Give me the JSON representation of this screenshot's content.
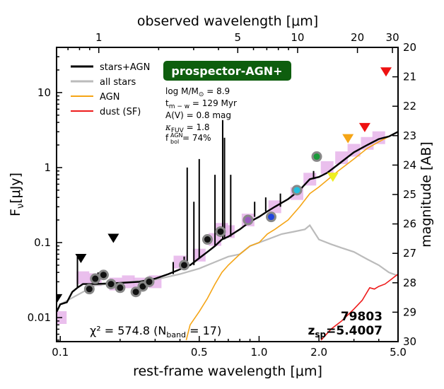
{
  "chart_data": {
    "type": "line",
    "xlabel": "rest-frame wavelength [μm]",
    "xlabel_top": "observed wavelength [μm]",
    "ylabel": "F",
    "ylabel_sub": "ν",
    "ylabel_unit": "[μJy]",
    "ylabel_right": "magnitude [AB]",
    "xscale": "log",
    "yscale": "log",
    "xlim": [
      0.0958,
      5.0
    ],
    "ylim": [
      0.00478,
      40.0
    ],
    "mag_lim": [
      30,
      20
    ],
    "redshift": 5.4007,
    "xticks_bottom": [
      {
        "v": 0.1,
        "label": "0.1"
      },
      {
        "v": 0.5,
        "label": "0.5"
      },
      {
        "v": 1.0,
        "label": "1.0"
      },
      {
        "v": 2.0,
        "label": "2.0"
      },
      {
        "v": 5.0,
        "label": "5.0"
      }
    ],
    "xticks_top": [
      {
        "v": 1,
        "label": "1"
      },
      {
        "v": 5,
        "label": "5"
      },
      {
        "v": 10,
        "label": "10"
      },
      {
        "v": 20,
        "label": "20"
      },
      {
        "v": 30,
        "label": "30"
      }
    ],
    "yticks_left": [
      {
        "v": 0.01,
        "label": "0.01"
      },
      {
        "v": 0.1,
        "label": "0.1"
      },
      {
        "v": 1,
        "label": "1"
      },
      {
        "v": 10,
        "label": "10"
      }
    ],
    "yticks_right": [
      "20",
      "21",
      "22",
      "23",
      "24",
      "25",
      "26",
      "27",
      "28",
      "29",
      "30"
    ],
    "legend": [
      {
        "name": "stars+AGN",
        "color": "#000000"
      },
      {
        "name": "all stars",
        "color": "#bbbbbb"
      },
      {
        "name": "AGN",
        "color": "#f5a516"
      },
      {
        "name": "dust (SF)",
        "color": "#ee1c1c"
      }
    ],
    "series": [
      {
        "name": "stars+AGN",
        "color": "#000000",
        "points": [
          [
            0.096,
            0.012
          ],
          [
            0.1,
            0.015
          ],
          [
            0.108,
            0.016
          ],
          [
            0.115,
            0.022
          ],
          [
            0.122,
            0.025
          ],
          [
            0.13,
            0.028
          ],
          [
            0.15,
            0.028
          ],
          [
            0.2,
            0.029
          ],
          [
            0.25,
            0.03
          ],
          [
            0.3,
            0.033
          ],
          [
            0.35,
            0.038
          ],
          [
            0.4,
            0.044
          ],
          [
            0.45,
            0.05
          ],
          [
            0.5,
            0.062
          ],
          [
            0.55,
            0.075
          ],
          [
            0.6,
            0.09
          ],
          [
            0.65,
            0.11
          ],
          [
            0.7,
            0.12
          ],
          [
            0.8,
            0.15
          ],
          [
            0.9,
            0.19
          ],
          [
            1.0,
            0.22
          ],
          [
            1.1,
            0.26
          ],
          [
            1.2,
            0.3
          ],
          [
            1.4,
            0.38
          ],
          [
            1.6,
            0.5
          ],
          [
            1.8,
            0.7
          ],
          [
            2.0,
            0.75
          ],
          [
            2.2,
            0.85
          ],
          [
            2.5,
            1.1
          ],
          [
            3.0,
            1.6
          ],
          [
            3.5,
            2.0
          ],
          [
            4.0,
            2.4
          ],
          [
            4.5,
            2.6
          ],
          [
            5.0,
            3.0
          ]
        ]
      },
      {
        "name": "all stars",
        "color": "#bbbbbb",
        "points": [
          [
            0.1,
            0.015
          ],
          [
            0.15,
            0.027
          ],
          [
            0.2,
            0.029
          ],
          [
            0.3,
            0.032
          ],
          [
            0.4,
            0.038
          ],
          [
            0.5,
            0.045
          ],
          [
            0.6,
            0.055
          ],
          [
            0.7,
            0.065
          ],
          [
            0.8,
            0.07
          ],
          [
            0.9,
            0.09
          ],
          [
            1.0,
            0.1
          ],
          [
            1.1,
            0.11
          ],
          [
            1.2,
            0.12
          ],
          [
            1.3,
            0.13
          ],
          [
            1.5,
            0.14
          ],
          [
            1.7,
            0.15
          ],
          [
            1.8,
            0.17
          ],
          [
            2.0,
            0.11
          ],
          [
            2.3,
            0.095
          ],
          [
            2.6,
            0.085
          ],
          [
            3.0,
            0.075
          ],
          [
            3.5,
            0.06
          ],
          [
            4.0,
            0.05
          ],
          [
            4.5,
            0.04
          ],
          [
            5.0,
            0.036
          ]
        ]
      },
      {
        "name": "AGN",
        "color": "#f5a516",
        "points": [
          [
            0.43,
            0.005
          ],
          [
            0.45,
            0.008
          ],
          [
            0.5,
            0.012
          ],
          [
            0.55,
            0.018
          ],
          [
            0.6,
            0.028
          ],
          [
            0.65,
            0.04
          ],
          [
            0.7,
            0.05
          ],
          [
            0.8,
            0.07
          ],
          [
            0.9,
            0.09
          ],
          [
            1.0,
            0.1
          ],
          [
            1.1,
            0.13
          ],
          [
            1.2,
            0.15
          ],
          [
            1.4,
            0.2
          ],
          [
            1.6,
            0.3
          ],
          [
            1.8,
            0.45
          ],
          [
            2.0,
            0.55
          ],
          [
            2.5,
            0.9
          ],
          [
            3.0,
            1.3
          ],
          [
            3.5,
            1.8
          ],
          [
            4.0,
            2.2
          ],
          [
            5.0,
            3.0
          ]
        ]
      },
      {
        "name": "dust (SF)",
        "color": "#ee1c1c",
        "points": [
          [
            2.05,
            0.005
          ],
          [
            2.3,
            0.007
          ],
          [
            2.6,
            0.009
          ],
          [
            3.0,
            0.013
          ],
          [
            3.3,
            0.017
          ],
          [
            3.6,
            0.025
          ],
          [
            3.8,
            0.024
          ],
          [
            4.0,
            0.026
          ],
          [
            4.3,
            0.028
          ],
          [
            4.6,
            0.032
          ],
          [
            5.0,
            0.038
          ]
        ]
      }
    ],
    "emission_lines": [
      [
        0.122,
        0.065
      ],
      [
        0.155,
        0.04
      ],
      [
        0.37,
        0.055
      ],
      [
        0.42,
        0.065
      ],
      [
        0.435,
        1.0
      ],
      [
        0.47,
        0.35
      ],
      [
        0.5,
        1.3
      ],
      [
        0.6,
        0.8
      ],
      [
        0.656,
        4.3
      ],
      [
        0.67,
        2.5
      ],
      [
        0.72,
        0.8
      ],
      [
        0.95,
        0.35
      ],
      [
        1.08,
        0.4
      ],
      [
        1.28,
        0.45
      ],
      [
        1.88,
        0.9
      ]
    ],
    "photometry_model": [
      [
        0.1,
        0.01
      ],
      [
        0.13,
        0.034
      ],
      [
        0.15,
        0.032
      ],
      [
        0.19,
        0.028
      ],
      [
        0.22,
        0.03
      ],
      [
        0.25,
        0.028
      ],
      [
        0.3,
        0.03
      ],
      [
        0.4,
        0.055
      ],
      [
        0.5,
        0.068
      ],
      [
        0.6,
        0.11
      ],
      [
        0.65,
        0.15
      ],
      [
        0.7,
        0.14
      ],
      [
        0.88,
        0.2
      ],
      [
        1.2,
        0.3
      ],
      [
        1.55,
        0.45
      ],
      [
        1.8,
        0.7
      ],
      [
        2.2,
        1.0
      ],
      [
        2.6,
        1.35
      ],
      [
        3.0,
        1.7
      ],
      [
        3.5,
        2.1
      ],
      [
        4.0,
        2.5
      ]
    ],
    "detections": [
      [
        0.14,
        0.024
      ],
      [
        0.15,
        0.033
      ],
      [
        0.165,
        0.037
      ],
      [
        0.18,
        0.028
      ],
      [
        0.2,
        0.025
      ],
      [
        0.24,
        0.022
      ],
      [
        0.26,
        0.026
      ],
      [
        0.28,
        0.03
      ],
      [
        0.42,
        0.05
      ],
      [
        0.55,
        0.11
      ],
      [
        0.64,
        0.14
      ],
      [
        0.88,
        0.2
      ],
      [
        1.15,
        0.22
      ],
      [
        1.55,
        0.5
      ],
      [
        1.95,
        1.4
      ]
    ],
    "detection_colors": [
      "#111111",
      "#111111",
      "#111111",
      "#111111",
      "#111111",
      "#111111",
      "#111111",
      "#111111",
      "#111111",
      "#111111",
      "#111111",
      "#9b59c0",
      "#2244dd",
      "#22c0e0",
      "#1a9a3a"
    ],
    "upper_limits": [
      [
        0.096,
        0.018
      ],
      [
        0.127,
        0.062
      ],
      [
        0.185,
        0.115
      ],
      [
        2.35,
        0.75
      ],
      [
        2.8,
        2.45
      ],
      [
        3.4,
        3.45
      ],
      [
        4.35,
        19.0
      ]
    ],
    "upper_limit_colors": [
      "#000000",
      "#000000",
      "#000000",
      "#eeee22",
      "#f5a516",
      "#ee1111",
      "#ee1111"
    ],
    "badge": "prospector-AGN+",
    "badge_color": "#0e5e0e",
    "params": [
      {
        "a": "log M/M",
        "sub": "⊙",
        "b": " = 8.9"
      },
      {
        "a": "t",
        "sub": "m − w",
        "b": " = 129 Myr"
      },
      {
        "a": "A(V) = 0.8 mag",
        "sub": "",
        "b": ""
      },
      {
        "a": "κ",
        "sub": "FUV",
        "b": " = 1.8"
      },
      {
        "a": "f",
        "sub": "bol",
        "sup": "AGN",
        "b": " = 74%"
      }
    ],
    "chi2_label": "χ² = 574.8 (N",
    "chi2_sub": "band",
    "chi2_tail": " = 17)",
    "object_id": "79803",
    "zsp_label": "z",
    "zsp_sub": "sp",
    "zsp_value": "=5.4007"
  }
}
